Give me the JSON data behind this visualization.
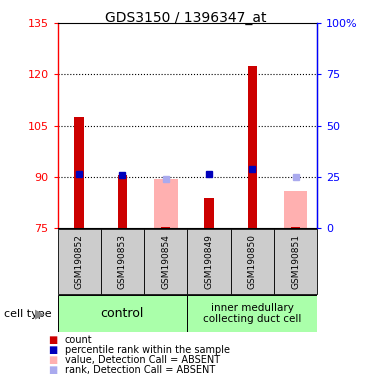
{
  "title": "GDS3150 / 1396347_at",
  "samples": [
    "GSM190852",
    "GSM190853",
    "GSM190854",
    "GSM190849",
    "GSM190850",
    "GSM190851"
  ],
  "ylim_left": [
    75,
    135
  ],
  "ylim_right": [
    0,
    100
  ],
  "yticks_left": [
    75,
    90,
    105,
    120,
    135
  ],
  "yticks_right": [
    0,
    25,
    50,
    75,
    100
  ],
  "ytick_labels_right": [
    "0",
    "25",
    "50",
    "75",
    "100%"
  ],
  "red_bars": [
    107.5,
    90.5,
    75.5,
    84.0,
    122.5,
    75.5
  ],
  "pink_bars": [
    null,
    null,
    89.5,
    null,
    null,
    86.0
  ],
  "blue_squares": [
    91.0,
    90.5,
    null,
    91.0,
    92.5,
    null
  ],
  "light_blue_squares": [
    null,
    null,
    89.5,
    null,
    null,
    90.0
  ],
  "bar_base": 75,
  "red_color": "#cc0000",
  "pink_color": "#ffb0b0",
  "blue_color": "#0000bb",
  "light_blue_color": "#aaaaee",
  "legend_labels": [
    "count",
    "percentile rank within the sample",
    "value, Detection Call = ABSENT",
    "rank, Detection Call = ABSENT"
  ]
}
